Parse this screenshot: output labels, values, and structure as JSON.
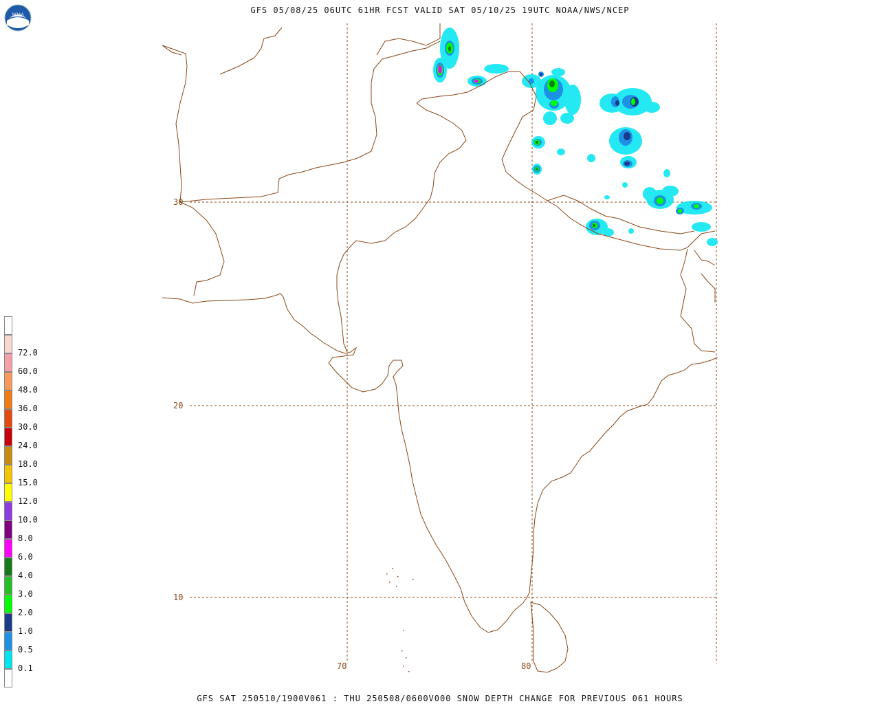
{
  "header": {
    "title": "GFS 05/08/25 06UTC 61HR FCST VALID SAT 05/10/25 19UTC NOAA/NWS/NCEP"
  },
  "footer": {
    "caption": "GFS SAT 250510/1900V061 : THU 250508/0600V000 SNOW DEPTH CHANGE FOR PREVIOUS 061 HOURS"
  },
  "logo": {
    "text": "NOAA",
    "color": "#1e5aa8"
  },
  "colors": {
    "coast": "#8b4513",
    "grid": "#8b4513"
  },
  "grid": {
    "lat_labels": [
      "30",
      "20",
      "10"
    ],
    "lon_labels": [
      "70",
      "80"
    ]
  },
  "legend": {
    "items": [
      {
        "label": "",
        "color": "#ffffff"
      },
      {
        "label": "72.0",
        "color": "#f9d8d0"
      },
      {
        "label": "60.0",
        "color": "#f5a0a8"
      },
      {
        "label": "48.0",
        "color": "#f79a5a"
      },
      {
        "label": "36.0",
        "color": "#f07b13"
      },
      {
        "label": "30.0",
        "color": "#e24a10"
      },
      {
        "label": "24.0",
        "color": "#c8000a"
      },
      {
        "label": "18.0",
        "color": "#c88a10"
      },
      {
        "label": "15.0",
        "color": "#f5c400"
      },
      {
        "label": "12.0",
        "color": "#ffff00"
      },
      {
        "label": "10.0",
        "color": "#8c3ce0"
      },
      {
        "label": "8.0",
        "color": "#800080"
      },
      {
        "label": "6.0",
        "color": "#ff00ff"
      },
      {
        "label": "4.0",
        "color": "#157a1a"
      },
      {
        "label": "3.0",
        "color": "#24c024"
      },
      {
        "label": "2.0",
        "color": "#00ff00"
      },
      {
        "label": "1.0",
        "color": "#1a3a8c"
      },
      {
        "label": "0.5",
        "color": "#1e90e6"
      },
      {
        "label": "0.1",
        "color": "#00e6f0"
      },
      {
        "label": "",
        "color": "#ffffff"
      }
    ]
  }
}
